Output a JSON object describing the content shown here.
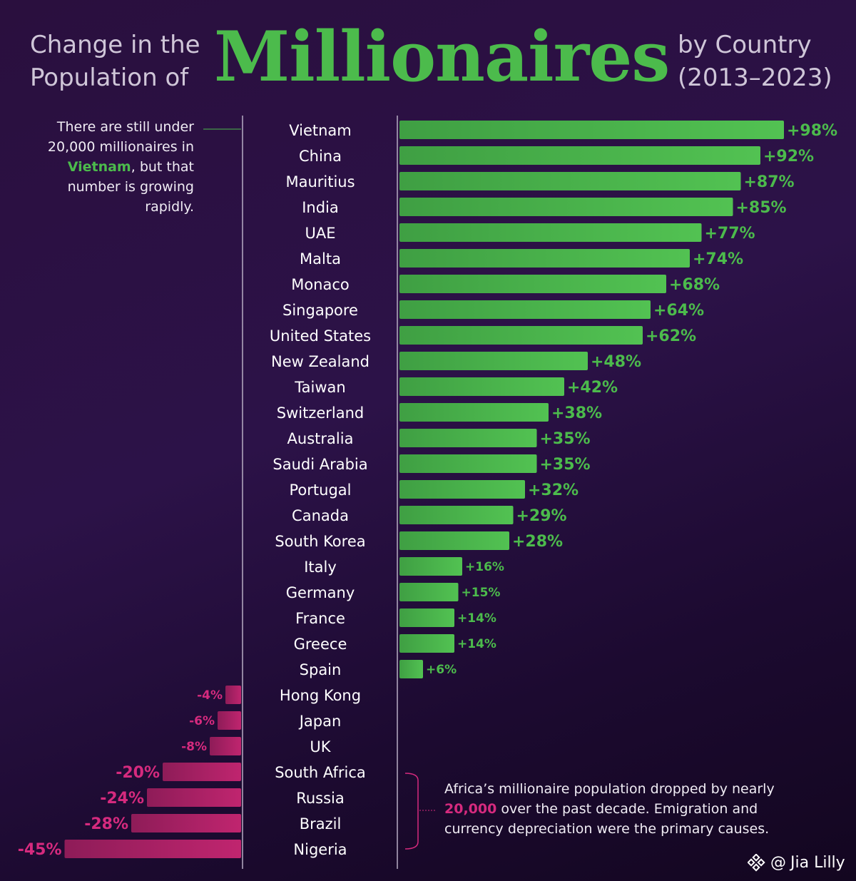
{
  "title": {
    "line1": "Change in the",
    "line2": "Population of",
    "main": "Millionaires",
    "line3": "by Country",
    "line4": "(2013–2023)"
  },
  "notes": {
    "vietnam": {
      "before": "There are still under 20,000 millionaires in ",
      "highlight": "Vietnam",
      "after": ", but that number is growing rapidly."
    },
    "africa": {
      "before": "Africa’s millionaire population dropped by nearly ",
      "highlight": "20,000",
      "after": " over the past decade. Emigration and currency depreciation were the primary causes."
    }
  },
  "credit": {
    "text": "Jia Lilly",
    "at": "@",
    "icon": "diamond-logo-icon"
  },
  "colors": {
    "positive": "#4cbb4c",
    "negative": "#d62a7e",
    "title": "#4cbb4c",
    "text": "#ffffff"
  },
  "chart_data": {
    "type": "bar",
    "orientation": "horizontal",
    "unit": "%",
    "categories": [
      "Vietnam",
      "China",
      "Mauritius",
      "India",
      "UAE",
      "Malta",
      "Monaco",
      "Singapore",
      "United States",
      "New Zealand",
      "Taiwan",
      "Switzerland",
      "Australia",
      "Saudi Arabia",
      "Portugal",
      "Canada",
      "South Korea",
      "Italy",
      "Germany",
      "France",
      "Greece",
      "Spain",
      "Hong Kong",
      "Japan",
      "UK",
      "South Africa",
      "Russia",
      "Brazil",
      "Nigeria"
    ],
    "values": [
      98,
      92,
      87,
      85,
      77,
      74,
      68,
      64,
      62,
      48,
      42,
      38,
      35,
      35,
      32,
      29,
      28,
      16,
      15,
      14,
      14,
      6,
      -4,
      -6,
      -8,
      -20,
      -24,
      -28,
      -45
    ],
    "labels": [
      "+98%",
      "+92%",
      "+87%",
      "+85%",
      "+77%",
      "+74%",
      "+68%",
      "+64%",
      "+62%",
      "+48%",
      "+42%",
      "+38%",
      "+35%",
      "+35%",
      "+32%",
      "+29%",
      "+28%",
      "+16%",
      "+15%",
      "+14%",
      "+14%",
      "+6%",
      "-4%",
      "-6%",
      "-8%",
      "-20%",
      "-24%",
      "-28%",
      "-45%"
    ],
    "xlabel": "",
    "ylabel": "",
    "grid": false,
    "legend": "none"
  }
}
